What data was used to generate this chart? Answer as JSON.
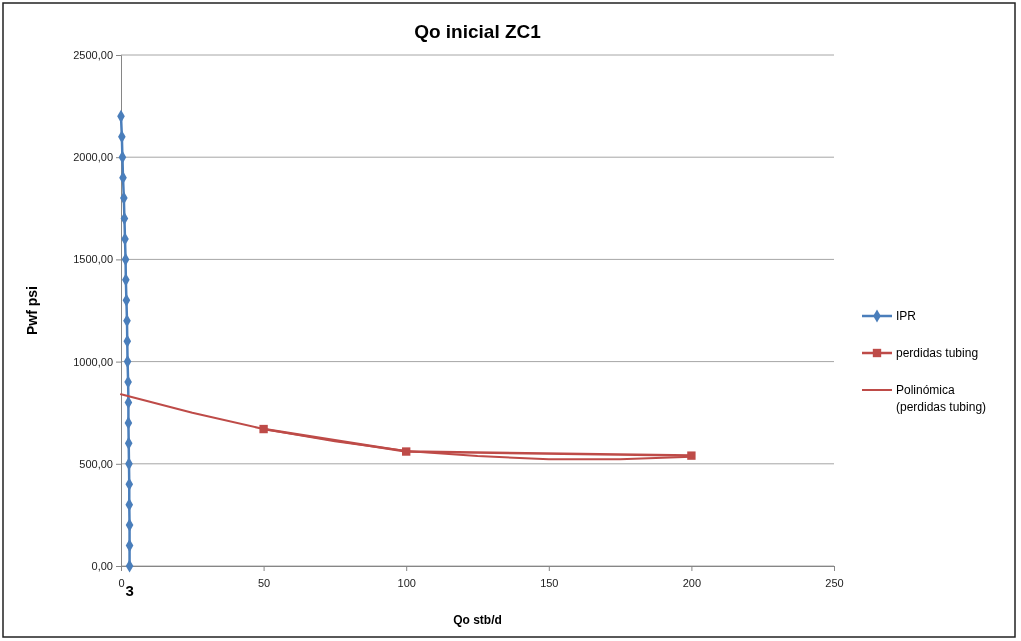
{
  "chart_data": {
    "type": "line",
    "title": "Qo inicial ZC1",
    "xlabel": "Qo stb/d",
    "ylabel": "Pwf psi",
    "xlim": [
      0,
      250
    ],
    "xticks": [
      0,
      50,
      100,
      150,
      200,
      250
    ],
    "ylim": [
      0,
      2500
    ],
    "yticks": [
      {
        "value": 0,
        "label": "0,00"
      },
      {
        "value": 500,
        "label": "500,00"
      },
      {
        "value": 1000,
        "label": "1000,00"
      },
      {
        "value": 1500,
        "label": "1500,00"
      },
      {
        "value": 2000,
        "label": "2000,00"
      },
      {
        "value": 2500,
        "label": "2500,00"
      }
    ],
    "grid": "y",
    "legend": "right",
    "annotations": [
      {
        "text": "3",
        "x": 3,
        "y": 0
      }
    ],
    "series": [
      {
        "name": "IPR",
        "color": "#4a7ebb",
        "marker": "diamond",
        "x": [
          3.0,
          3.0,
          3.0,
          2.9,
          2.9,
          2.8,
          2.7,
          2.6,
          2.6,
          2.5,
          2.3,
          2.2,
          2.1,
          1.9,
          1.7,
          1.6,
          1.4,
          1.2,
          1.0,
          0.7,
          0.5,
          0.3,
          0
        ],
        "values": [
          0,
          100,
          200,
          300,
          400,
          500,
          600,
          700,
          800,
          900,
          1000,
          1100,
          1200,
          1300,
          1400,
          1500,
          1600,
          1700,
          1800,
          1900,
          2000,
          2100,
          2200
        ]
      },
      {
        "name": "perdidas tubing",
        "color": "#be4b48",
        "marker": "square",
        "x": [
          50,
          100,
          200
        ],
        "values": [
          670,
          560,
          540
        ]
      },
      {
        "name": "Polinómica\n(perdidas tubing)",
        "color": "#be4b48",
        "marker": "none",
        "x": [
          0,
          25,
          50,
          75,
          100,
          125,
          150,
          175,
          200
        ],
        "values": [
          840,
          750,
          670,
          610,
          563,
          538,
          522,
          522,
          535
        ]
      }
    ]
  }
}
